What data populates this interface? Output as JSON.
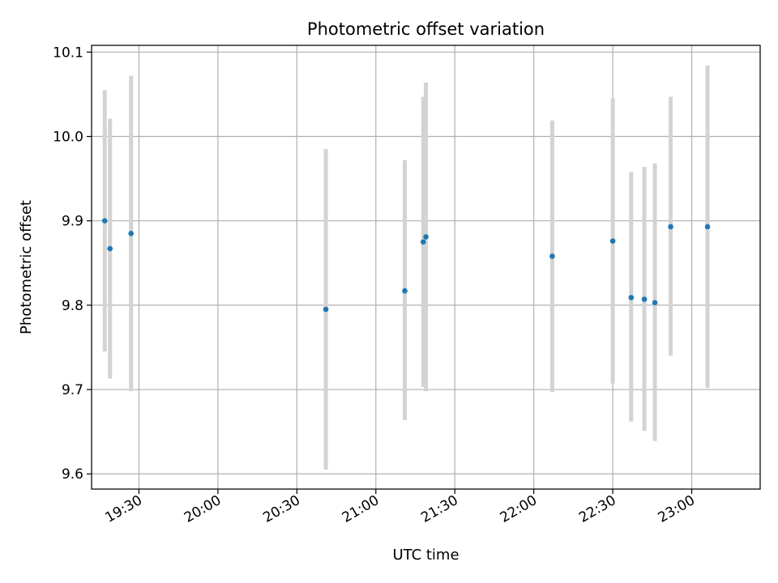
{
  "chart_data": {
    "type": "scatter",
    "title": "Photometric offset variation",
    "xlabel": "UTC time",
    "ylabel": "Photometric offset",
    "xlim": [
      "19:12",
      "23:26"
    ],
    "ylim": [
      9.582,
      10.108
    ],
    "x_ticks": [
      "19:30",
      "20:00",
      "20:30",
      "21:00",
      "21:30",
      "22:00",
      "22:30",
      "23:00"
    ],
    "y_ticks": [
      9.6,
      9.7,
      9.8,
      9.9,
      10.0,
      10.1
    ],
    "grid": true,
    "marker_color": "#1f77b4",
    "errorbar_color": "#d3d3d3",
    "series": [
      {
        "points": [
          {
            "x": "19:17",
            "y": 9.9,
            "yerr_low": 9.745,
            "yerr_high": 10.055
          },
          {
            "x": "19:19",
            "y": 9.867,
            "yerr_low": 9.713,
            "yerr_high": 10.021
          },
          {
            "x": "19:27",
            "y": 9.885,
            "yerr_low": 9.698,
            "yerr_high": 10.072
          },
          {
            "x": "20:41",
            "y": 9.795,
            "yerr_low": 9.605,
            "yerr_high": 9.985
          },
          {
            "x": "21:11",
            "y": 9.817,
            "yerr_low": 9.664,
            "yerr_high": 9.972
          },
          {
            "x": "21:18",
            "y": 9.875,
            "yerr_low": 9.703,
            "yerr_high": 10.047
          },
          {
            "x": "21:19",
            "y": 9.881,
            "yerr_low": 9.698,
            "yerr_high": 10.064
          },
          {
            "x": "22:07",
            "y": 9.858,
            "yerr_low": 9.697,
            "yerr_high": 10.019
          },
          {
            "x": "22:30",
            "y": 9.876,
            "yerr_low": 9.707,
            "yerr_high": 10.045
          },
          {
            "x": "22:37",
            "y": 9.809,
            "yerr_low": 9.662,
            "yerr_high": 9.958
          },
          {
            "x": "22:42",
            "y": 9.807,
            "yerr_low": 9.651,
            "yerr_high": 9.964
          },
          {
            "x": "22:46",
            "y": 9.803,
            "yerr_low": 9.639,
            "yerr_high": 9.968
          },
          {
            "x": "22:52",
            "y": 9.893,
            "yerr_low": 9.74,
            "yerr_high": 10.047
          },
          {
            "x": "23:06",
            "y": 9.893,
            "yerr_low": 9.702,
            "yerr_high": 10.084
          }
        ]
      }
    ]
  }
}
